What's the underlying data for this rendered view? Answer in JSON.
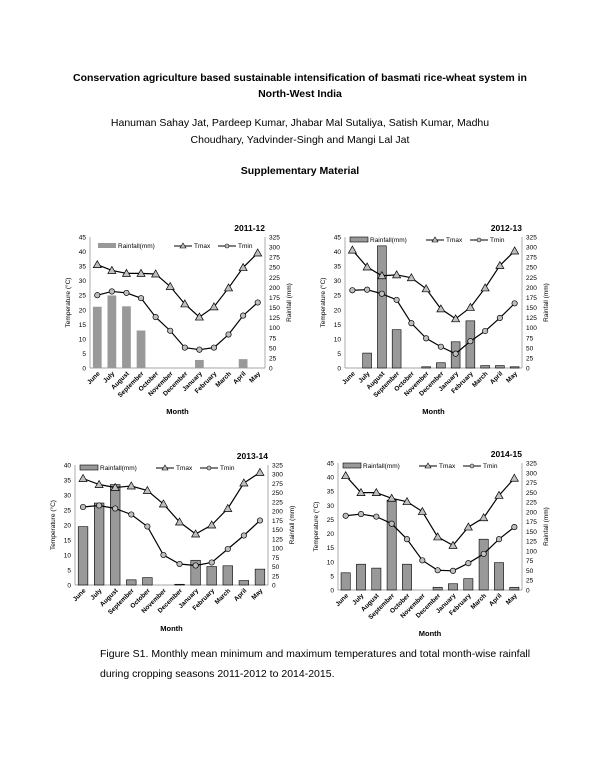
{
  "title": [
    "Conservation agriculture based sustainable intensification of basmati rice-wheat system in",
    "North-West India"
  ],
  "authors": "Hanuman Sahay Jat, Pardeep Kumar, Jhabar Mal Sutaliya, Satish Kumar, Madhu Choudhary, Yadvinder-Singh and Mangi Lal Jat",
  "supplementary": "Supplementary Material",
  "caption": "Figure S1. Monthly mean minimum and maximum temperatures and total month-wise rainfall during cropping seasons 2011-2012 to 2014-2015.",
  "colors": {
    "bar": "#999999",
    "line": "#000000",
    "marker": "#bfbfbf"
  },
  "chart_data": [
    {
      "type": "bar+line",
      "title": "2011-12",
      "xlabel": "Month",
      "ylabel": "Temperature (°C)",
      "y2label": "Rainfall (mm)",
      "ylim": [
        0,
        45
      ],
      "yticks": [
        0,
        5,
        10,
        15,
        20,
        25,
        30,
        35,
        40,
        45
      ],
      "y2lim": [
        0,
        325
      ],
      "y2ticks": [
        0,
        25,
        50,
        75,
        100,
        125,
        150,
        175,
        200,
        225,
        250,
        275,
        300,
        325
      ],
      "categories": [
        "June",
        "July",
        "August",
        "September",
        "October",
        "November",
        "December",
        "January",
        "February",
        "March",
        "April",
        "May"
      ],
      "series": [
        {
          "name": "Rainfall(mm)",
          "axis": "right",
          "type": "bar",
          "values": [
            152,
            180,
            153,
            93,
            0,
            0,
            0,
            20,
            1,
            0,
            22,
            0
          ]
        },
        {
          "name": "Tmax",
          "type": "line",
          "marker": "triangle",
          "values": [
            35.5,
            33.5,
            32.5,
            32.5,
            32.3,
            28,
            22,
            17.5,
            21,
            27.5,
            34.5,
            39.5
          ]
        },
        {
          "name": "Tmin",
          "type": "line",
          "marker": "circle",
          "values": [
            25,
            26.3,
            25.8,
            24,
            17.5,
            12.8,
            7,
            6.3,
            7,
            11.5,
            18,
            22.5
          ]
        }
      ]
    },
    {
      "type": "bar+line",
      "title": "2012-13",
      "xlabel": "Month",
      "ylabel": "Temperature (°C)",
      "y2label": "Rainfall (mm)",
      "ylim": [
        0,
        45
      ],
      "yticks": [
        0,
        5,
        10,
        15,
        20,
        25,
        30,
        35,
        40,
        45
      ],
      "y2lim": [
        0,
        325
      ],
      "y2ticks": [
        0,
        25,
        50,
        75,
        100,
        125,
        150,
        175,
        200,
        225,
        250,
        275,
        300,
        325
      ],
      "categories": [
        "June",
        "July",
        "August",
        "September",
        "October",
        "November",
        "December",
        "January",
        "February",
        "March",
        "April",
        "May"
      ],
      "series": [
        {
          "name": "Rainfall(mm)",
          "axis": "right",
          "type": "bar",
          "values": [
            0,
            37,
            303,
            95,
            0,
            3,
            13,
            65,
            117,
            6,
            6,
            3
          ]
        },
        {
          "name": "Tmax",
          "type": "line",
          "marker": "triangle",
          "values": [
            40.5,
            34.7,
            31.7,
            32,
            31,
            27.2,
            20.3,
            16.9,
            20.8,
            27.5,
            35.2,
            40.2
          ]
        },
        {
          "name": "Tmin",
          "type": "line",
          "marker": "circle",
          "values": [
            26.7,
            26.9,
            25.5,
            23.4,
            15.4,
            10.2,
            7.3,
            4.9,
            9.2,
            12.7,
            17.2,
            22.2
          ]
        }
      ]
    },
    {
      "type": "bar+line",
      "title": "2013-14",
      "xlabel": "Month",
      "ylabel": "Temperature (°C)",
      "y2label": "Rainfall (mm)",
      "ylim": [
        0,
        40
      ],
      "yticks": [
        0,
        5,
        10,
        15,
        20,
        25,
        30,
        35,
        40
      ],
      "y2lim": [
        0,
        325
      ],
      "y2ticks": [
        0,
        25,
        50,
        75,
        100,
        125,
        150,
        175,
        200,
        225,
        250,
        275,
        300,
        325
      ],
      "categories": [
        "June",
        "July",
        "August",
        "September",
        "October",
        "November",
        "December",
        "January",
        "February",
        "March",
        "April",
        "May"
      ],
      "series": [
        {
          "name": "Rainfall(mm)",
          "axis": "right",
          "type": "bar",
          "values": [
            158,
            222,
            272,
            14,
            20,
            0,
            2,
            67,
            50,
            52,
            12,
            43
          ]
        },
        {
          "name": "Tmax",
          "type": "line",
          "marker": "triangle",
          "values": [
            35.5,
            33.5,
            32.5,
            33,
            31.5,
            27,
            21,
            17,
            20,
            25.5,
            34,
            37.5
          ]
        },
        {
          "name": "Tmin",
          "type": "line",
          "marker": "circle",
          "values": [
            26,
            26.5,
            25.5,
            23.5,
            19.5,
            10,
            7,
            6.5,
            7.5,
            12,
            16.5,
            21.5
          ]
        }
      ]
    },
    {
      "type": "bar+line",
      "title": "2014-15",
      "xlabel": "Month",
      "ylabel": "Temperature (°C)",
      "y2label": "Rainfall (mm)",
      "ylim": [
        0,
        45
      ],
      "yticks": [
        0,
        5,
        10,
        15,
        20,
        25,
        30,
        35,
        40,
        45
      ],
      "y2lim": [
        0,
        325
      ],
      "y2ticks": [
        0,
        25,
        50,
        75,
        100,
        125,
        150,
        175,
        200,
        225,
        250,
        275,
        300,
        325
      ],
      "categories": [
        "June",
        "July",
        "August",
        "September",
        "October",
        "November",
        "December",
        "January",
        "February",
        "March",
        "April",
        "May"
      ],
      "series": [
        {
          "name": "Rainfall(mm)",
          "axis": "right",
          "type": "bar",
          "values": [
            44,
            66,
            56,
            230,
            66,
            0,
            7,
            16,
            29,
            130,
            70,
            7
          ]
        },
        {
          "name": "Tmax",
          "type": "line",
          "marker": "triangle",
          "values": [
            40.5,
            34.5,
            34.5,
            32.5,
            31.3,
            27.8,
            18.8,
            15.8,
            22.3,
            25.6,
            33.5,
            39.6
          ]
        },
        {
          "name": "Tmin",
          "type": "line",
          "marker": "circle",
          "values": [
            26.3,
            26.9,
            26,
            23.5,
            18,
            10.5,
            7,
            6.8,
            9.5,
            12.8,
            18,
            22.3
          ]
        }
      ]
    }
  ]
}
